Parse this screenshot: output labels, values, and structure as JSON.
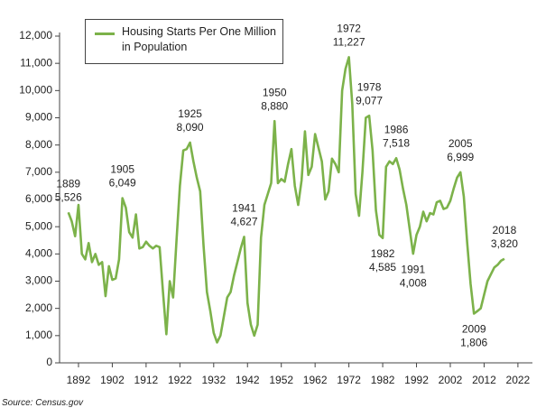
{
  "chart_data": {
    "type": "line",
    "source": "Source: Census.gov",
    "x": [
      1889,
      1890,
      1891,
      1892,
      1893,
      1894,
      1895,
      1896,
      1897,
      1898,
      1899,
      1900,
      1901,
      1902,
      1903,
      1904,
      1905,
      1906,
      1907,
      1908,
      1909,
      1910,
      1911,
      1912,
      1913,
      1914,
      1915,
      1916,
      1917,
      1918,
      1919,
      1920,
      1921,
      1922,
      1923,
      1924,
      1925,
      1926,
      1927,
      1928,
      1929,
      1930,
      1931,
      1932,
      1933,
      1934,
      1935,
      1936,
      1937,
      1938,
      1939,
      1940,
      1941,
      1942,
      1943,
      1944,
      1945,
      1946,
      1947,
      1948,
      1949,
      1950,
      1951,
      1952,
      1953,
      1954,
      1955,
      1956,
      1957,
      1958,
      1959,
      1960,
      1961,
      1962,
      1963,
      1964,
      1965,
      1966,
      1967,
      1968,
      1969,
      1970,
      1971,
      1972,
      1973,
      1974,
      1975,
      1976,
      1977,
      1978,
      1979,
      1980,
      1981,
      1982,
      1983,
      1984,
      1985,
      1986,
      1987,
      1988,
      1989,
      1990,
      1991,
      1992,
      1993,
      1994,
      1995,
      1996,
      1997,
      1998,
      1999,
      2000,
      2001,
      2002,
      2003,
      2004,
      2005,
      2006,
      2007,
      2008,
      2009,
      2010,
      2011,
      2012,
      2013,
      2014,
      2015,
      2016,
      2017,
      2018
    ],
    "series": [
      {
        "name": "Housing Starts Per One Million in Population",
        "color": "#7cb24a",
        "values": [
          5526,
          5200,
          4650,
          5800,
          4000,
          3800,
          4400,
          3700,
          4000,
          3600,
          3700,
          2450,
          3550,
          3050,
          3100,
          3800,
          6049,
          5700,
          4800,
          4600,
          5450,
          4200,
          4250,
          4450,
          4300,
          4200,
          4300,
          4250,
          2600,
          1050,
          3000,
          2400,
          4500,
          6500,
          7800,
          7850,
          8090,
          7400,
          6800,
          6300,
          4300,
          2600,
          1900,
          1100,
          750,
          1000,
          1700,
          2400,
          2600,
          3200,
          3700,
          4200,
          4627,
          2200,
          1400,
          1000,
          1400,
          4600,
          5800,
          6200,
          6600,
          8880,
          6600,
          6750,
          6650,
          7300,
          7850,
          6500,
          5800,
          6700,
          8500,
          6900,
          7200,
          8400,
          7900,
          7400,
          6000,
          6300,
          7500,
          7300,
          7000,
          10000,
          10800,
          11227,
          9500,
          6200,
          5400,
          7000,
          9000,
          9077,
          7800,
          5600,
          4700,
          4585,
          7200,
          7400,
          7300,
          7518,
          7100,
          6400,
          5800,
          4900,
          4008,
          4700,
          5000,
          5550,
          5200,
          5500,
          5450,
          5900,
          5950,
          5650,
          5700,
          5950,
          6400,
          6800,
          6999,
          6100,
          4400,
          2900,
          1806,
          1900,
          2000,
          2500,
          3000,
          3250,
          3500,
          3600,
          3750,
          3820
        ],
        "value_labels": [
          "5,526",
          null,
          null,
          null,
          null,
          null,
          null,
          null,
          null,
          null,
          null,
          null,
          null,
          null,
          null,
          null,
          "6,049",
          null,
          null,
          null,
          null,
          null,
          null,
          null,
          null,
          null,
          null,
          null,
          null,
          null,
          null,
          null,
          null,
          null,
          null,
          null,
          "8,090",
          null,
          null,
          null,
          null,
          null,
          null,
          null,
          null,
          null,
          null,
          null,
          null,
          null,
          null,
          null,
          "4,627",
          null,
          null,
          null,
          null,
          null,
          null,
          null,
          null,
          "8,880",
          null,
          null,
          null,
          null,
          null,
          null,
          null,
          null,
          null,
          null,
          null,
          null,
          null,
          null,
          null,
          null,
          null,
          null,
          null,
          null,
          null,
          "11,227",
          null,
          null,
          null,
          null,
          null,
          "9,077",
          null,
          null,
          null,
          "4,585",
          null,
          null,
          null,
          "7,518",
          null,
          null,
          null,
          null,
          "4,008",
          null,
          null,
          null,
          null,
          null,
          null,
          null,
          null,
          null,
          null,
          null,
          null,
          null,
          "6,999",
          null,
          null,
          null,
          "1,806",
          null,
          null,
          null,
          null,
          null,
          null,
          null,
          null,
          "3,820"
        ]
      }
    ],
    "xlim": [
      1886.4,
      2026.3
    ],
    "xticks": [
      1892,
      1902,
      1912,
      1922,
      1932,
      1942,
      1952,
      1962,
      1972,
      1982,
      1992,
      2002,
      2012,
      2022
    ],
    "ylim": [
      0,
      12000
    ],
    "yticks": [
      0,
      {
        "value": 1000,
        "label": "1,000"
      },
      {
        "value": 2000,
        "label": "2,000"
      },
      {
        "value": 3000,
        "label": "3,000"
      },
      {
        "value": 4000,
        "label": "4,000"
      },
      {
        "value": 5000,
        "label": "5,000"
      },
      {
        "value": 6000,
        "label": "6,000"
      },
      {
        "value": 7000,
        "label": "7,000"
      },
      {
        "value": 8000,
        "label": "8,000"
      },
      {
        "value": 9000,
        "label": "9,000"
      },
      {
        "value": 10000,
        "label": "10,000"
      },
      {
        "value": 11000,
        "label": "11,000"
      },
      {
        "value": 12000,
        "label": "12,000"
      }
    ],
    "legend": "upper left",
    "grid": false
  }
}
